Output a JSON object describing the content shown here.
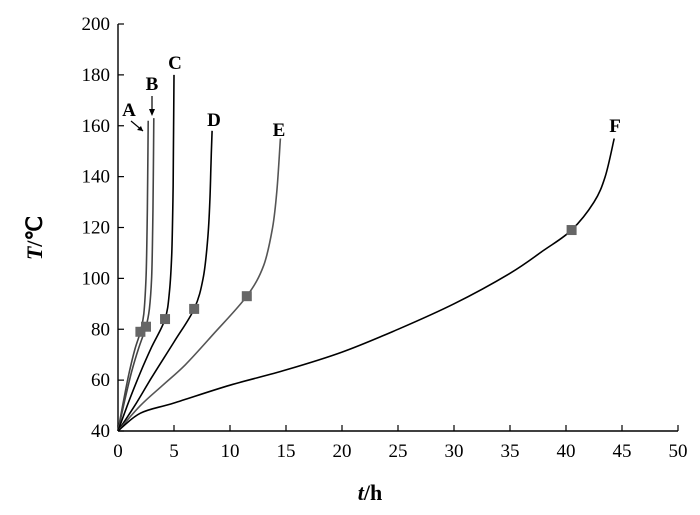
{
  "chart_data": {
    "type": "line",
    "xlabel": {
      "var": "t",
      "unit": "/h"
    },
    "ylabel": {
      "var": "T",
      "unit": "/℃"
    },
    "xlim": [
      0,
      50
    ],
    "ylim": [
      40,
      200
    ],
    "xticks": [
      "0",
      "5",
      "10",
      "15",
      "20",
      "25",
      "30",
      "35",
      "40",
      "45",
      "50"
    ],
    "yticks": [
      "40",
      "60",
      "80",
      "100",
      "120",
      "140",
      "160",
      "180",
      "200"
    ],
    "grid": false,
    "legend": "none",
    "series": [
      {
        "name": "A",
        "color": "#444444",
        "points": [
          [
            0,
            40
          ],
          [
            0.5,
            52
          ],
          [
            1.0,
            63
          ],
          [
            1.5,
            72
          ],
          [
            2.0,
            79
          ],
          [
            2.3,
            86
          ],
          [
            2.5,
            100
          ],
          [
            2.6,
            120
          ],
          [
            2.65,
            140
          ],
          [
            2.7,
            162
          ]
        ],
        "marker": [
          2.0,
          79
        ]
      },
      {
        "name": "B",
        "color": "#444444",
        "points": [
          [
            0,
            40
          ],
          [
            0.6,
            52
          ],
          [
            1.2,
            63
          ],
          [
            1.8,
            72
          ],
          [
            2.5,
            81
          ],
          [
            2.8,
            88
          ],
          [
            3.0,
            100
          ],
          [
            3.1,
            120
          ],
          [
            3.15,
            140
          ],
          [
            3.2,
            163
          ]
        ],
        "marker": [
          2.5,
          81
        ]
      },
      {
        "name": "C",
        "color": "#000000",
        "points": [
          [
            0,
            40
          ],
          [
            1.0,
            52
          ],
          [
            2.0,
            63
          ],
          [
            3.0,
            73
          ],
          [
            4.2,
            84
          ],
          [
            4.6,
            95
          ],
          [
            4.8,
            110
          ],
          [
            4.9,
            130
          ],
          [
            4.95,
            150
          ],
          [
            5.0,
            180
          ]
        ],
        "marker": [
          4.2,
          84
        ]
      },
      {
        "name": "D",
        "color": "#000000",
        "points": [
          [
            0,
            40
          ],
          [
            1.5,
            50
          ],
          [
            3.0,
            61
          ],
          [
            5.0,
            75
          ],
          [
            6.8,
            88
          ],
          [
            7.6,
            100
          ],
          [
            8.0,
            115
          ],
          [
            8.2,
            130
          ],
          [
            8.3,
            145
          ],
          [
            8.4,
            158
          ]
        ],
        "marker": [
          6.8,
          88
        ]
      },
      {
        "name": "E",
        "color": "#555555",
        "points": [
          [
            0,
            40
          ],
          [
            2.0,
            50
          ],
          [
            4.0,
            58
          ],
          [
            6.0,
            66
          ],
          [
            8.5,
            78
          ],
          [
            11.5,
            93
          ],
          [
            13.0,
            105
          ],
          [
            13.8,
            120
          ],
          [
            14.2,
            135
          ],
          [
            14.5,
            155
          ]
        ],
        "marker": [
          11.5,
          93
        ]
      },
      {
        "name": "F",
        "color": "#000000",
        "points": [
          [
            0,
            40
          ],
          [
            2.0,
            47
          ],
          [
            5.0,
            51
          ],
          [
            10.0,
            58
          ],
          [
            15.0,
            64
          ],
          [
            20.0,
            71
          ],
          [
            25.0,
            80
          ],
          [
            30.0,
            90
          ],
          [
            35.0,
            102
          ],
          [
            38.0,
            111
          ],
          [
            40.5,
            119
          ],
          [
            42.5,
            130
          ],
          [
            43.5,
            140
          ],
          [
            44.3,
            155
          ]
        ],
        "marker": [
          40.5,
          119
        ]
      }
    ]
  }
}
